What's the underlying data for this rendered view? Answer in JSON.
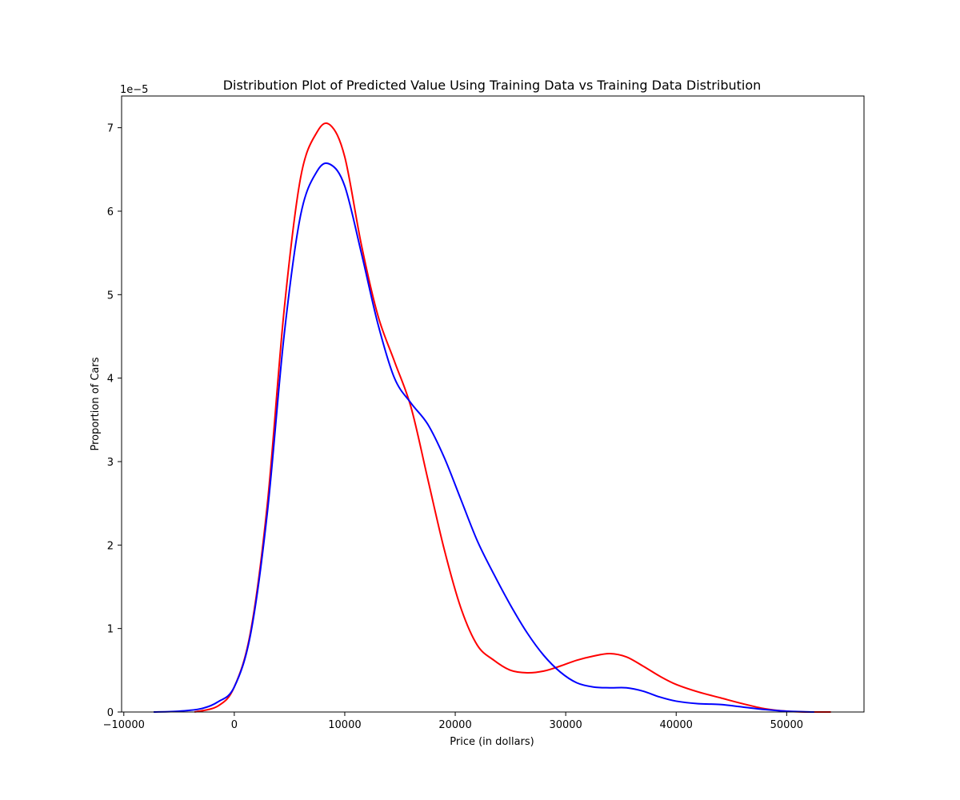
{
  "chart_data": {
    "type": "line",
    "title": "Distribution Plot of Predicted Value Using Training Data vs Training Data Distribution",
    "xlabel": "Price (in dollars)",
    "ylabel": "Proportion of Cars",
    "y_offset_label": "1e−5",
    "xlim": [
      -10200,
      57000
    ],
    "ylim": [
      0,
      7.38
    ],
    "x_ticks": [
      -10000,
      0,
      10000,
      20000,
      30000,
      40000,
      50000
    ],
    "x_tick_labels": [
      "−10000",
      "0",
      "10000",
      "20000",
      "30000",
      "40000",
      "50000"
    ],
    "y_ticks": [
      0,
      1,
      2,
      3,
      4,
      5,
      6,
      7
    ],
    "y_tick_labels": [
      "0",
      "1",
      "2",
      "3",
      "4",
      "5",
      "6",
      "7"
    ],
    "grid": false,
    "legend": "none",
    "series": [
      {
        "color": "#ff0000",
        "x": [
          -3600,
          -1500,
          0,
          1500,
          3000,
          4500,
          6000,
          7500,
          8700,
          10000,
          11500,
          13000,
          14500,
          16000,
          17500,
          19000,
          20500,
          22000,
          23500,
          25000,
          26500,
          28000,
          29500,
          31000,
          32500,
          34000,
          35500,
          37000,
          38500,
          40000,
          42000,
          44000,
          46000,
          48000,
          50000,
          52000,
          54000
        ],
        "y": [
          0.0,
          0.07,
          0.3,
          0.98,
          2.5,
          4.8,
          6.4,
          6.95,
          7.03,
          6.65,
          5.6,
          4.75,
          4.2,
          3.65,
          2.8,
          1.95,
          1.25,
          0.8,
          0.62,
          0.5,
          0.47,
          0.49,
          0.55,
          0.62,
          0.67,
          0.7,
          0.66,
          0.55,
          0.43,
          0.33,
          0.24,
          0.17,
          0.1,
          0.04,
          0.01,
          0.0,
          0.0
        ]
      },
      {
        "color": "#0000ff",
        "x": [
          -7300,
          -5000,
          -3000,
          -1500,
          0,
          1500,
          3000,
          4500,
          6000,
          7500,
          8700,
          10000,
          11500,
          13000,
          14500,
          16000,
          17500,
          19000,
          20500,
          22000,
          23500,
          25000,
          26500,
          28000,
          29500,
          31000,
          32500,
          34000,
          35500,
          37000,
          38500,
          40000,
          42000,
          44000,
          46000,
          48000,
          50000,
          52500
        ],
        "y": [
          0.0,
          0.01,
          0.04,
          0.12,
          0.3,
          0.95,
          2.4,
          4.5,
          5.95,
          6.48,
          6.56,
          6.3,
          5.5,
          4.65,
          4.0,
          3.7,
          3.45,
          3.05,
          2.55,
          2.05,
          1.65,
          1.28,
          0.95,
          0.68,
          0.48,
          0.35,
          0.3,
          0.29,
          0.29,
          0.25,
          0.18,
          0.13,
          0.1,
          0.09,
          0.06,
          0.03,
          0.01,
          0.0
        ]
      }
    ]
  }
}
